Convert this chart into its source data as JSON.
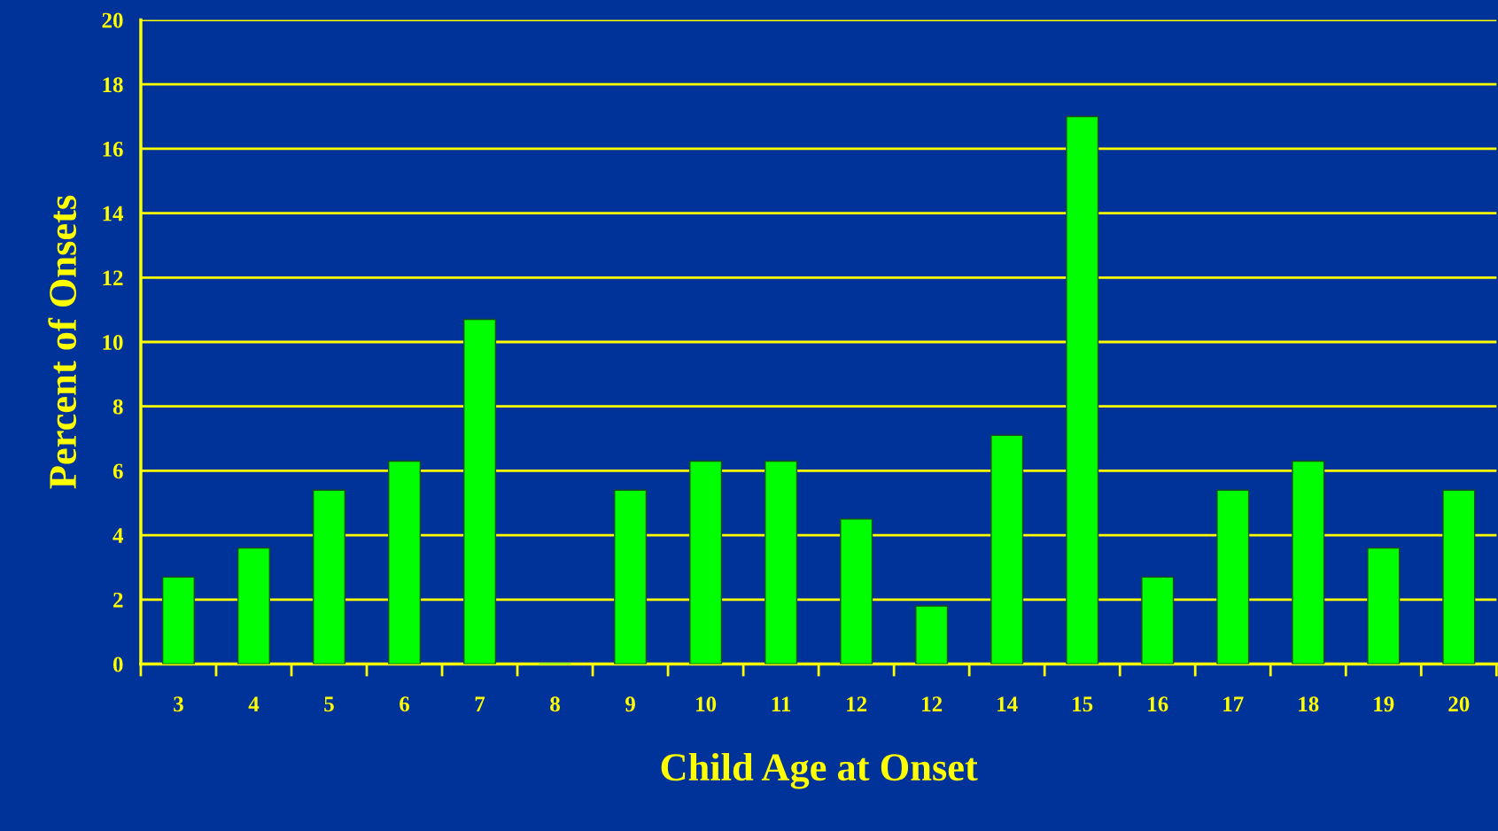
{
  "chart_data": {
    "type": "bar",
    "xlabel": "Child Age at Onset",
    "ylabel": "Percent of Onsets",
    "categories": [
      "3",
      "4",
      "5",
      "6",
      "7",
      "8",
      "9",
      "10",
      "11",
      "12",
      "12",
      "14",
      "15",
      "16",
      "17",
      "18",
      "19",
      "20"
    ],
    "values": [
      2.7,
      3.6,
      5.4,
      6.3,
      10.7,
      0,
      5.4,
      6.3,
      6.3,
      4.5,
      1.8,
      7.1,
      17.0,
      2.7,
      5.4,
      6.3,
      3.6,
      5.4
    ],
    "color": "#00ff00",
    "ylim": [
      0,
      20
    ],
    "yticks": [
      0,
      2,
      4,
      6,
      8,
      10,
      12,
      14,
      16,
      18,
      20
    ],
    "grid": "y"
  }
}
